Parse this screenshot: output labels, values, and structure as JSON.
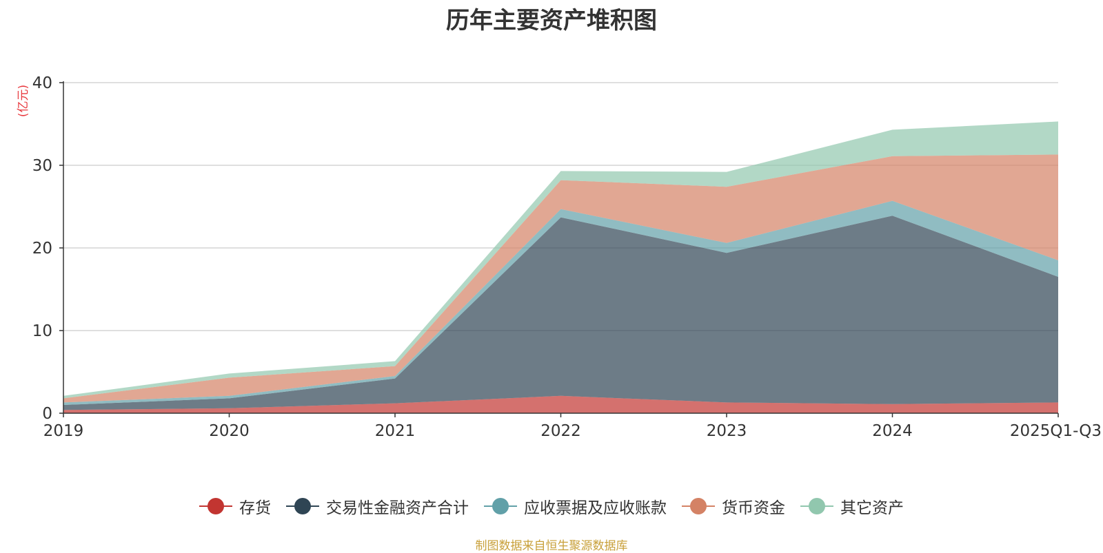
{
  "chart_data": {
    "type": "area",
    "stacked": true,
    "title": "历年主要资产堆积图",
    "ylabel": "(亿元)",
    "xlabel": "",
    "ylim": [
      0,
      40
    ],
    "yticks": [
      0,
      10,
      20,
      30,
      40
    ],
    "grid": true,
    "legend_position": "bottom",
    "categories": [
      "2019",
      "2020",
      "2021",
      "2022",
      "2023",
      "2024",
      "2025Q1-Q3"
    ],
    "series": [
      {
        "name": "存货",
        "color": "#c23531",
        "values": [
          0.4,
          0.6,
          1.2,
          2.1,
          1.3,
          1.1,
          1.3
        ]
      },
      {
        "name": "交易性金融资产合计",
        "color": "#2f4554",
        "values": [
          0.6,
          1.2,
          3.0,
          21.6,
          18.1,
          22.8,
          15.2
        ]
      },
      {
        "name": "应收票据及应收账款",
        "color": "#61a0a8",
        "values": [
          0.3,
          0.3,
          0.3,
          1.0,
          1.2,
          1.8,
          2.0
        ]
      },
      {
        "name": "货币资金",
        "color": "#d48265",
        "values": [
          0.5,
          2.2,
          1.2,
          3.5,
          6.8,
          5.4,
          12.8
        ]
      },
      {
        "name": "其它资产",
        "color": "#91c7ae",
        "values": [
          0.3,
          0.5,
          0.6,
          1.1,
          1.8,
          3.2,
          4.0
        ]
      }
    ]
  },
  "source_note": "制图数据来自恒生聚源数据库"
}
